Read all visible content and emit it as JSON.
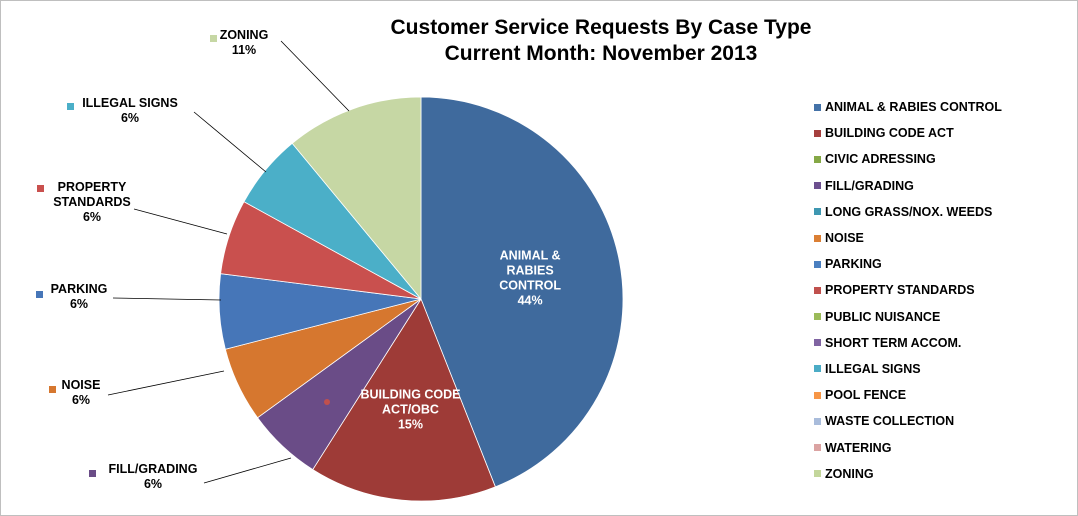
{
  "chart_data": {
    "type": "pie",
    "title": [
      "Customer Service Requests By Case Type",
      "Current Month:  November 2013"
    ],
    "legend_position": "right",
    "legend": [
      {
        "name": "ANIMAL & RABIES CONTROL",
        "color": "#4472A8"
      },
      {
        "name": "BUILDING CODE ACT",
        "color": "#A53F3D"
      },
      {
        "name": "CIVIC ADRESSING",
        "color": "#85A846"
      },
      {
        "name": "FILL/GRADING",
        "color": "#6C4F8F"
      },
      {
        "name": "LONG GRASS/NOX. WEEDS",
        "color": "#3E97B1"
      },
      {
        "name": "NOISE",
        "color": "#DB7F34"
      },
      {
        "name": "PARKING",
        "color": "#4A7FC0"
      },
      {
        "name": "PROPERTY STANDARDS",
        "color": "#C0504D"
      },
      {
        "name": "PUBLIC NUISANCE",
        "color": "#9BBB59"
      },
      {
        "name": "SHORT TERM ACCOM.",
        "color": "#8064A2"
      },
      {
        "name": "ILLEGAL SIGNS",
        "color": "#4BACC6"
      },
      {
        "name": "POOL FENCE",
        "color": "#F79646"
      },
      {
        "name": "WASTE COLLECTION",
        "color": "#A9BCDB"
      },
      {
        "name": "WATERING",
        "color": "#DBA3A2"
      },
      {
        "name": "ZONING",
        "color": "#C3D69B"
      }
    ],
    "slices": [
      {
        "label": [
          "ANIMAL &",
          "RABIES",
          "CONTROL"
        ],
        "percent_text": "44%",
        "value": 44,
        "color": "#3F6A9D",
        "label_inside": true
      },
      {
        "label": [
          "BUILDING CODE",
          "ACT/OBC"
        ],
        "percent_text": "15%",
        "value": 15,
        "color": "#9E3B37",
        "label_inside": true
      },
      {
        "label": [
          "FILL/GRADING"
        ],
        "percent_text": "6%",
        "value": 6,
        "color": "#6A4C87",
        "label_inside": false
      },
      {
        "label": [
          "NOISE"
        ],
        "percent_text": "6%",
        "value": 6,
        "color": "#D6772F",
        "label_inside": false
      },
      {
        "label": [
          "PARKING"
        ],
        "percent_text": "6%",
        "value": 6,
        "color": "#4676B8",
        "label_inside": false
      },
      {
        "label": [
          "PROPERTY",
          "STANDARDS"
        ],
        "percent_text": "6%",
        "value": 6,
        "color": "#C9504E",
        "label_inside": false
      },
      {
        "label": [
          "ILLEGAL SIGNS"
        ],
        "percent_text": "6%",
        "value": 6,
        "color": "#4BAFC8",
        "label_inside": false
      },
      {
        "label": [
          "ZONING"
        ],
        "percent_text": "11%",
        "value": 11,
        "color": "#C6D7A4",
        "label_inside": false
      }
    ]
  }
}
